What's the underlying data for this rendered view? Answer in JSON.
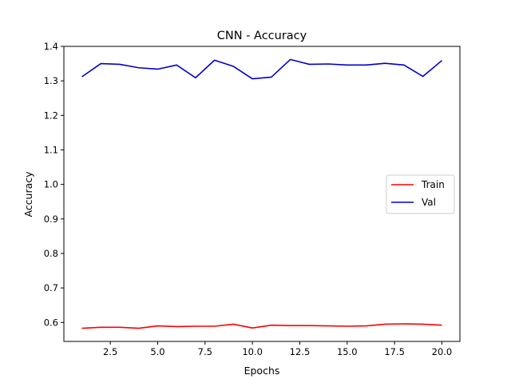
{
  "chart_data": {
    "type": "line",
    "title": "CNN - Accuracy",
    "xlabel": "Epochs",
    "ylabel": "Accuracy",
    "xlim": [
      0.05,
      20.95
    ],
    "ylim": [
      0.545,
      1.4
    ],
    "xticks": [
      2.5,
      5.0,
      7.5,
      10.0,
      12.5,
      15.0,
      17.5,
      20.0
    ],
    "yticks": [
      0.6,
      0.7,
      0.8,
      0.9,
      1.0,
      1.1,
      1.2,
      1.3,
      1.4
    ],
    "x": [
      1,
      2,
      3,
      4,
      5,
      6,
      7,
      8,
      9,
      10,
      11,
      12,
      13,
      14,
      15,
      16,
      17,
      18,
      19,
      20
    ],
    "series": [
      {
        "name": "Train",
        "color": "#ff0000",
        "values": [
          0.583,
          0.586,
          0.586,
          0.583,
          0.59,
          0.588,
          0.589,
          0.589,
          0.595,
          0.584,
          0.592,
          0.591,
          0.591,
          0.59,
          0.589,
          0.59,
          0.595,
          0.596,
          0.595,
          0.592
        ]
      },
      {
        "name": "Val",
        "color": "#0000cc",
        "values": [
          1.312,
          1.35,
          1.348,
          1.338,
          1.334,
          1.346,
          1.309,
          1.36,
          1.342,
          1.306,
          1.311,
          1.362,
          1.348,
          1.349,
          1.346,
          1.346,
          1.351,
          1.346,
          1.313,
          1.359
        ]
      }
    ],
    "legend_position": "center-right",
    "grid": false
  }
}
